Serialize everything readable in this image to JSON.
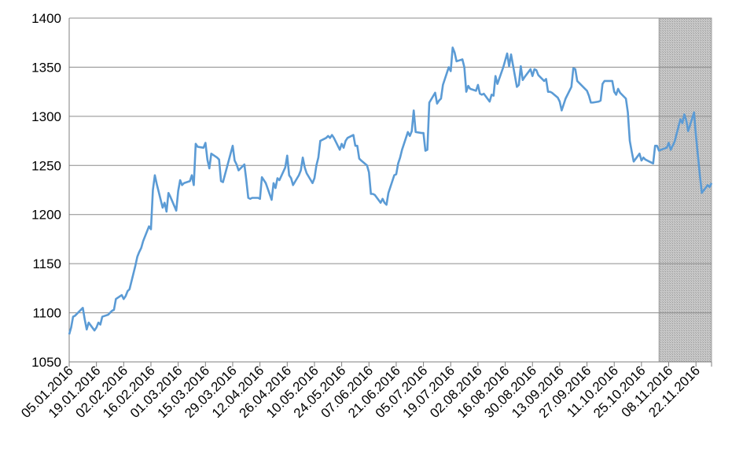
{
  "chart_data": {
    "type": "line",
    "title": "",
    "xlabel": "",
    "ylabel": "",
    "ylim": [
      1050,
      1400
    ],
    "yticks": [
      1050,
      1100,
      1150,
      1200,
      1250,
      1300,
      1350,
      1400
    ],
    "grid": "horizontal",
    "legend": "none",
    "line_color": "#5b9bd5",
    "shade_color": "#c8c8c8",
    "x_range": [
      "05.01.2016",
      "30.11.2016"
    ],
    "xtick_labels": [
      "05.01.2016",
      "19.01.2016",
      "02.02.2016",
      "16.02.2016",
      "01.03.2016",
      "15.03.2016",
      "29.03.2016",
      "12.04.2016",
      "26.04.2016",
      "10.05.2016",
      "24.05.2016",
      "07.06.2016",
      "21.06.2016",
      "05.07.2016",
      "19.07.2016",
      "02.08.2016",
      "16.08.2016",
      "30.08.2016",
      "13.09.2016",
      "27.09.2016",
      "11.10.2016",
      "25.10.2016",
      "08.11.2016",
      "22.11.2016"
    ],
    "shaded_region": {
      "from": "03.11.2016",
      "to": "30.11.2016"
    },
    "series": [
      {
        "points": [
          [
            "05.01.2016",
            1078
          ],
          [
            "06.01.2016",
            1085
          ],
          [
            "07.01.2016",
            1096
          ],
          [
            "08.01.2016",
            1097
          ],
          [
            "11.01.2016",
            1103
          ],
          [
            "12.01.2016",
            1105
          ],
          [
            "13.01.2016",
            1093
          ],
          [
            "14.01.2016",
            1083
          ],
          [
            "15.01.2016",
            1090
          ],
          [
            "18.01.2016",
            1082
          ],
          [
            "19.01.2016",
            1085
          ],
          [
            "20.01.2016",
            1090
          ],
          [
            "21.01.2016",
            1088
          ],
          [
            "22.01.2016",
            1096
          ],
          [
            "25.01.2016",
            1098
          ],
          [
            "26.01.2016",
            1100
          ],
          [
            "27.01.2016",
            1102
          ],
          [
            "28.01.2016",
            1103
          ],
          [
            "29.01.2016",
            1114
          ],
          [
            "01.02.2016",
            1118
          ],
          [
            "02.02.2016",
            1114
          ],
          [
            "03.02.2016",
            1117
          ],
          [
            "04.02.2016",
            1122
          ],
          [
            "05.02.2016",
            1124
          ],
          [
            "08.02.2016",
            1148
          ],
          [
            "09.02.2016",
            1157
          ],
          [
            "10.02.2016",
            1162
          ],
          [
            "11.02.2016",
            1166
          ],
          [
            "12.02.2016",
            1173
          ],
          [
            "15.02.2016",
            1188
          ],
          [
            "16.02.2016",
            1185
          ],
          [
            "17.02.2016",
            1225
          ],
          [
            "18.02.2016",
            1240
          ],
          [
            "19.02.2016",
            1231
          ],
          [
            "22.02.2016",
            1207
          ],
          [
            "23.02.2016",
            1212
          ],
          [
            "24.02.2016",
            1203
          ],
          [
            "25.02.2016",
            1222
          ],
          [
            "26.02.2016",
            1218
          ],
          [
            "29.02.2016",
            1204
          ],
          [
            "01.03.2016",
            1224
          ],
          [
            "02.03.2016",
            1235
          ],
          [
            "03.03.2016",
            1230
          ],
          [
            "04.03.2016",
            1232
          ],
          [
            "07.03.2016",
            1234
          ],
          [
            "08.03.2016",
            1240
          ],
          [
            "09.03.2016",
            1230
          ],
          [
            "10.03.2016",
            1272
          ],
          [
            "11.03.2016",
            1269
          ],
          [
            "14.03.2016",
            1268
          ],
          [
            "15.03.2016",
            1273
          ],
          [
            "16.03.2016",
            1256
          ],
          [
            "17.03.2016",
            1247
          ],
          [
            "18.03.2016",
            1262
          ],
          [
            "21.03.2016",
            1258
          ],
          [
            "22.03.2016",
            1256
          ],
          [
            "23.03.2016",
            1234
          ],
          [
            "24.03.2016",
            1233
          ],
          [
            "29.03.2016",
            1270
          ],
          [
            "30.03.2016",
            1255
          ],
          [
            "31.03.2016",
            1251
          ],
          [
            "01.04.2016",
            1245
          ],
          [
            "04.04.2016",
            1251
          ],
          [
            "05.04.2016",
            1235
          ],
          [
            "06.04.2016",
            1217
          ],
          [
            "07.04.2016",
            1216
          ],
          [
            "08.04.2016",
            1217
          ],
          [
            "11.04.2016",
            1217
          ],
          [
            "12.04.2016",
            1216
          ],
          [
            "13.04.2016",
            1238
          ],
          [
            "14.04.2016",
            1235
          ],
          [
            "15.04.2016",
            1232
          ],
          [
            "18.04.2016",
            1215
          ],
          [
            "19.04.2016",
            1232
          ],
          [
            "20.04.2016",
            1227
          ],
          [
            "21.04.2016",
            1237
          ],
          [
            "22.04.2016",
            1235
          ],
          [
            "25.04.2016",
            1248
          ],
          [
            "26.04.2016",
            1260
          ],
          [
            "27.04.2016",
            1240
          ],
          [
            "28.04.2016",
            1237
          ],
          [
            "29.04.2016",
            1230
          ],
          [
            "02.05.2016",
            1240
          ],
          [
            "03.05.2016",
            1245
          ],
          [
            "04.05.2016",
            1258
          ],
          [
            "05.05.2016",
            1248
          ],
          [
            "06.05.2016",
            1242
          ],
          [
            "09.05.2016",
            1232
          ],
          [
            "10.05.2016",
            1237
          ],
          [
            "11.05.2016",
            1250
          ],
          [
            "12.05.2016",
            1258
          ],
          [
            "13.05.2016",
            1275
          ],
          [
            "16.05.2016",
            1278
          ],
          [
            "17.05.2016",
            1280
          ],
          [
            "18.05.2016",
            1278
          ],
          [
            "19.05.2016",
            1281
          ],
          [
            "20.05.2016",
            1278
          ],
          [
            "23.05.2016",
            1266
          ],
          [
            "24.05.2016",
            1272
          ],
          [
            "25.05.2016",
            1268
          ],
          [
            "26.05.2016",
            1275
          ],
          [
            "27.05.2016",
            1278
          ],
          [
            "30.05.2016",
            1281
          ],
          [
            "31.05.2016",
            1270
          ],
          [
            "01.06.2016",
            1270
          ],
          [
            "02.06.2016",
            1257
          ],
          [
            "03.06.2016",
            1255
          ],
          [
            "06.06.2016",
            1250
          ],
          [
            "07.06.2016",
            1243
          ],
          [
            "08.06.2016",
            1221
          ],
          [
            "09.06.2016",
            1221
          ],
          [
            "10.06.2016",
            1220
          ],
          [
            "13.06.2016",
            1212
          ],
          [
            "14.06.2016",
            1216
          ],
          [
            "15.06.2016",
            1212
          ],
          [
            "16.06.2016",
            1210
          ],
          [
            "17.06.2016",
            1222
          ],
          [
            "20.06.2016",
            1240
          ],
          [
            "21.06.2016",
            1241
          ],
          [
            "22.06.2016",
            1252
          ],
          [
            "23.06.2016",
            1258
          ],
          [
            "24.06.2016",
            1266
          ],
          [
            "27.06.2016",
            1284
          ],
          [
            "28.06.2016",
            1280
          ],
          [
            "29.06.2016",
            1285
          ],
          [
            "30.06.2016",
            1306
          ],
          [
            "01.07.2016",
            1284
          ],
          [
            "04.07.2016",
            1283
          ],
          [
            "05.07.2016",
            1283
          ],
          [
            "06.07.2016",
            1265
          ],
          [
            "07.07.2016",
            1266
          ],
          [
            "08.07.2016",
            1314
          ],
          [
            "11.07.2016",
            1324
          ],
          [
            "12.07.2016",
            1313
          ],
          [
            "13.07.2016",
            1316
          ],
          [
            "14.07.2016",
            1318
          ],
          [
            "15.07.2016",
            1332
          ],
          [
            "18.07.2016",
            1350
          ],
          [
            "19.07.2016",
            1346
          ],
          [
            "20.07.2016",
            1370
          ],
          [
            "21.07.2016",
            1365
          ],
          [
            "22.07.2016",
            1356
          ],
          [
            "25.07.2016",
            1358
          ],
          [
            "26.07.2016",
            1350
          ],
          [
            "27.07.2016",
            1325
          ],
          [
            "28.07.2016",
            1331
          ],
          [
            "29.07.2016",
            1328
          ],
          [
            "01.08.2016",
            1326
          ],
          [
            "02.08.2016",
            1332
          ],
          [
            "03.08.2016",
            1323
          ],
          [
            "04.08.2016",
            1322
          ],
          [
            "05.08.2016",
            1323
          ],
          [
            "08.08.2016",
            1315
          ],
          [
            "09.08.2016",
            1322
          ],
          [
            "10.08.2016",
            1321
          ],
          [
            "11.08.2016",
            1341
          ],
          [
            "12.08.2016",
            1333
          ],
          [
            "15.08.2016",
            1350
          ],
          [
            "16.08.2016",
            1357
          ],
          [
            "17.08.2016",
            1364
          ],
          [
            "18.08.2016",
            1351
          ],
          [
            "19.08.2016",
            1363
          ],
          [
            "22.08.2016",
            1330
          ],
          [
            "23.08.2016",
            1332
          ],
          [
            "24.08.2016",
            1351
          ],
          [
            "25.08.2016",
            1337
          ],
          [
            "26.08.2016",
            1340
          ],
          [
            "29.08.2016",
            1348
          ],
          [
            "30.08.2016",
            1341
          ],
          [
            "31.08.2016",
            1348
          ],
          [
            "01.09.2016",
            1347
          ],
          [
            "02.09.2016",
            1342
          ],
          [
            "05.09.2016",
            1336
          ],
          [
            "06.09.2016",
            1338
          ],
          [
            "07.09.2016",
            1325
          ],
          [
            "08.09.2016",
            1325
          ],
          [
            "09.09.2016",
            1324
          ],
          [
            "12.09.2016",
            1319
          ],
          [
            "13.09.2016",
            1315
          ],
          [
            "14.09.2016",
            1306
          ],
          [
            "15.09.2016",
            1312
          ],
          [
            "16.09.2016",
            1318
          ],
          [
            "19.09.2016",
            1330
          ],
          [
            "20.09.2016",
            1349
          ],
          [
            "21.09.2016",
            1348
          ],
          [
            "22.09.2016",
            1336
          ],
          [
            "23.09.2016",
            1334
          ],
          [
            "26.09.2016",
            1328
          ],
          [
            "27.09.2016",
            1326
          ],
          [
            "28.09.2016",
            1321
          ],
          [
            "29.09.2016",
            1314
          ],
          [
            "30.09.2016",
            1314
          ],
          [
            "03.10.2016",
            1315
          ],
          [
            "04.10.2016",
            1316
          ],
          [
            "05.10.2016",
            1333
          ],
          [
            "06.10.2016",
            1336
          ],
          [
            "07.10.2016",
            1336
          ],
          [
            "10.10.2016",
            1336
          ],
          [
            "11.10.2016",
            1325
          ],
          [
            "12.10.2016",
            1322
          ],
          [
            "13.10.2016",
            1328
          ],
          [
            "14.10.2016",
            1324
          ],
          [
            "17.10.2016",
            1318
          ],
          [
            "18.10.2016",
            1304
          ],
          [
            "19.10.2016",
            1275
          ],
          [
            "20.10.2016",
            1264
          ],
          [
            "21.10.2016",
            1254
          ],
          [
            "24.10.2016",
            1262
          ],
          [
            "25.10.2016",
            1255
          ],
          [
            "26.10.2016",
            1258
          ],
          [
            "27.10.2016",
            1256
          ],
          [
            "28.10.2016",
            1255
          ],
          [
            "31.10.2016",
            1252
          ],
          [
            "01.11.2016",
            1270
          ],
          [
            "02.11.2016",
            1270
          ],
          [
            "03.11.2016",
            1265
          ],
          [
            "04.11.2016",
            1266
          ],
          [
            "07.11.2016",
            1268
          ],
          [
            "08.11.2016",
            1273
          ],
          [
            "09.11.2016",
            1266
          ],
          [
            "10.11.2016",
            1270
          ],
          [
            "11.11.2016",
            1274
          ],
          [
            "14.11.2016",
            1297
          ],
          [
            "15.11.2016",
            1293
          ],
          [
            "16.11.2016",
            1302
          ],
          [
            "17.11.2016",
            1296
          ],
          [
            "18.11.2016",
            1285
          ],
          [
            "21.11.2016",
            1304
          ],
          [
            "22.11.2016",
            1280
          ],
          [
            "23.11.2016",
            1260
          ],
          [
            "24.11.2016",
            1240
          ],
          [
            "25.11.2016",
            1222
          ],
          [
            "28.11.2016",
            1230
          ],
          [
            "29.11.2016",
            1228
          ],
          [
            "30.11.2016",
            1232
          ]
        ]
      }
    ]
  }
}
